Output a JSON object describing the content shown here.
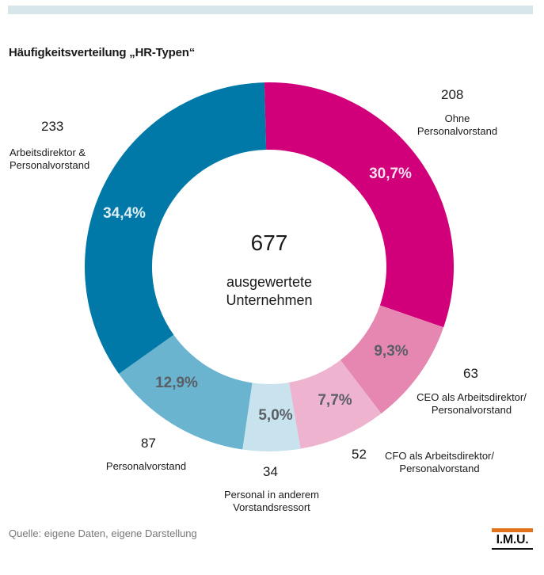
{
  "title": "Häufigkeitsverteilung „HR-Typen“",
  "center": {
    "count": "677",
    "label_line1": "ausgewertete",
    "label_line2": "Unternehmen"
  },
  "source": "Quelle: eigene Daten, eigene Darstellung",
  "logo": {
    "text": "I.M.U.",
    "bar_color": "#e2731a"
  },
  "chart_data": {
    "type": "pie",
    "variant": "donut",
    "total": 677,
    "slices": [
      {
        "count": 208,
        "label_line1": "Ohne",
        "label_line2": "Personalvorstand",
        "percent": 30.7,
        "percent_label": "30,7%",
        "color": "#d1007a"
      },
      {
        "count": 63,
        "label_line1": "CEO als Arbeitsdirektor/",
        "label_line2": "Personalvorstand",
        "percent": 9.3,
        "percent_label": "9,3%",
        "color": "#e587b1"
      },
      {
        "count": 52,
        "label_line1": "CFO als Arbeitsdirektor/",
        "label_line2": "Personalvorstand",
        "percent": 7.7,
        "percent_label": "7,7%",
        "color": "#edb3cf"
      },
      {
        "count": 34,
        "label_line1": "Personal in anderem",
        "label_line2": "Vorstandsressort",
        "percent": 5.0,
        "percent_label": "5,0%",
        "color": "#c8e3ee"
      },
      {
        "count": 87,
        "label_line1": "Personalvorstand",
        "label_line2": "",
        "percent": 12.9,
        "percent_label": "12,9%",
        "color": "#6ab4cf"
      },
      {
        "count": 233,
        "label_line1": "Arbeitsdirektor &",
        "label_line2": "Personalvorstand",
        "percent": 34.4,
        "percent_label": "34,4%",
        "color": "#0078a8"
      }
    ]
  }
}
